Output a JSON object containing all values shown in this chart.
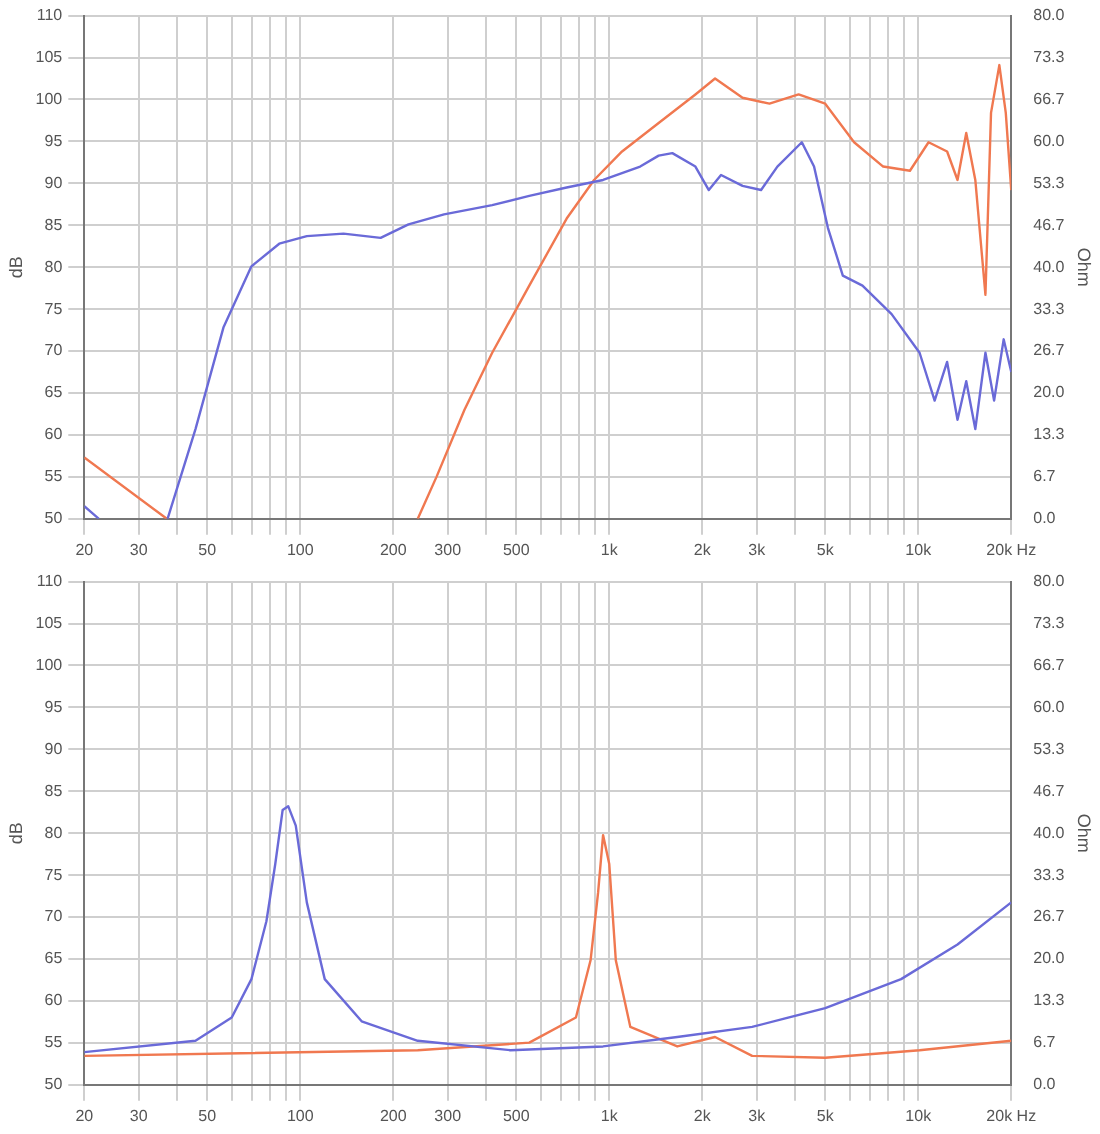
{
  "chart_data": [
    {
      "type": "line",
      "log": "x",
      "grid": true,
      "legend": false,
      "ylabel": "dB",
      "y2label": "Ohm",
      "xlim": [
        20,
        20000
      ],
      "ylim": [
        50,
        110
      ],
      "y2lim": [
        0,
        80
      ],
      "xticks": [
        20,
        30,
        {
          "value": 40,
          "label": null
        },
        50,
        {
          "value": 60,
          "label": null
        },
        {
          "value": 70,
          "label": null
        },
        {
          "value": 80,
          "label": null
        },
        {
          "value": 90,
          "label": null
        },
        100,
        200,
        300,
        {
          "value": 400,
          "label": null
        },
        500,
        {
          "value": 600,
          "label": null
        },
        {
          "value": 700,
          "label": null
        },
        {
          "value": 800,
          "label": null
        },
        {
          "value": 900,
          "label": null
        },
        {
          "value": 1000,
          "label": "1k"
        },
        {
          "value": 2000,
          "label": "2k"
        },
        {
          "value": 3000,
          "label": "3k"
        },
        {
          "value": 4000,
          "label": null
        },
        {
          "value": 5000,
          "label": "5k"
        },
        {
          "value": 6000,
          "label": null
        },
        {
          "value": 7000,
          "label": null
        },
        {
          "value": 8000,
          "label": null
        },
        {
          "value": 9000,
          "label": null
        },
        {
          "value": 10000,
          "label": "10k"
        },
        {
          "value": 20000,
          "label": "20k Hz"
        }
      ],
      "yticks": [
        50,
        55,
        60,
        65,
        70,
        75,
        80,
        85,
        90,
        95,
        100,
        105,
        110
      ],
      "y2ticks": [
        {
          "value": 0,
          "label": "0.0"
        },
        {
          "value": 6.667,
          "label": "6.7"
        },
        {
          "value": 13.333,
          "label": "13.3"
        },
        {
          "value": 20,
          "label": "20.0"
        },
        {
          "value": 26.667,
          "label": "26.7"
        },
        {
          "value": 33.333,
          "label": "33.3"
        },
        {
          "value": 40,
          "label": "40.0"
        },
        {
          "value": 46.667,
          "label": "46.7"
        },
        {
          "value": 53.333,
          "label": "53.3"
        },
        {
          "value": 60,
          "label": "60.0"
        },
        {
          "value": 66.667,
          "label": "66.7"
        },
        {
          "value": 73.333,
          "label": "73.3"
        },
        {
          "value": 80,
          "label": "80.0"
        }
      ],
      "series": [
        {
          "color": "#6a6ad8",
          "x": [
            20,
            22.3,
            30,
            37.2,
            45.8,
            56.4,
            69.5,
            85.5,
            105,
            138,
            182,
            224,
            292,
            418,
            551,
            728,
            955,
            1259,
            1445,
            1600,
            1900,
            2100,
            2300,
            2700,
            3100,
            3500,
            4200,
            4600,
            5100,
            5700,
            6600,
            8200,
            10100,
            11300,
            12400,
            13400,
            14300,
            15300,
            16500,
            17600,
            18900,
            20000
          ],
          "values": [
            51.5,
            50,
            null,
            50,
            60.7,
            72.8,
            80.1,
            82.8,
            83.7,
            84,
            83.5,
            85.1,
            86.3,
            87.4,
            88.5,
            89.5,
            90.4,
            92,
            93.3,
            93.6,
            92,
            89.2,
            91,
            89.7,
            89.2,
            92,
            94.9,
            92,
            84.7,
            79,
            77.8,
            74.4,
            69.8,
            64.1,
            68.7,
            61.8,
            66.4,
            60.7,
            69.8,
            64.1,
            71.4,
            67.5
          ]
        },
        {
          "color": "#f07850",
          "x": [
            20,
            37,
            100,
            240,
            276,
            340,
            418,
            551,
            728,
            893,
            1100,
            1445,
            1900,
            2200,
            2700,
            3300,
            4100,
            5000,
            6200,
            7700,
            9400,
            10800,
            12400,
            13400,
            14300,
            15300,
            16500,
            17200,
            18300,
            19200,
            20000
          ],
          "values": [
            57.3,
            50,
            null,
            50,
            55,
            63,
            69.8,
            77.8,
            85.8,
            90.4,
            93.8,
            97.2,
            100.6,
            102.5,
            100.2,
            99.5,
            100.6,
            99.5,
            94.9,
            92,
            91.5,
            94.9,
            93.8,
            90.4,
            96,
            90.4,
            76.7,
            98.4,
            104.1,
            98.4,
            89.2
          ]
        }
      ]
    },
    {
      "type": "line",
      "log": "x",
      "grid": true,
      "legend": false,
      "ylabel": "dB",
      "y2label": "Ohm",
      "xlim": [
        20,
        20000
      ],
      "ylim": [
        50,
        110
      ],
      "y2lim": [
        0,
        80
      ],
      "xticks": [
        20,
        30,
        {
          "value": 40,
          "label": null
        },
        50,
        {
          "value": 60,
          "label": null
        },
        {
          "value": 70,
          "label": null
        },
        {
          "value": 80,
          "label": null
        },
        {
          "value": 90,
          "label": null
        },
        100,
        200,
        300,
        {
          "value": 400,
          "label": null
        },
        500,
        {
          "value": 600,
          "label": null
        },
        {
          "value": 700,
          "label": null
        },
        {
          "value": 800,
          "label": null
        },
        {
          "value": 900,
          "label": null
        },
        {
          "value": 1000,
          "label": "1k"
        },
        {
          "value": 2000,
          "label": "2k"
        },
        {
          "value": 3000,
          "label": "3k"
        },
        {
          "value": 4000,
          "label": null
        },
        {
          "value": 5000,
          "label": "5k"
        },
        {
          "value": 6000,
          "label": null
        },
        {
          "value": 7000,
          "label": null
        },
        {
          "value": 8000,
          "label": null
        },
        {
          "value": 9000,
          "label": null
        },
        {
          "value": 10000,
          "label": "10k"
        },
        {
          "value": 20000,
          "label": "20k Hz"
        }
      ],
      "yticks": [
        50,
        55,
        60,
        65,
        70,
        75,
        80,
        85,
        90,
        95,
        100,
        105,
        110
      ],
      "y2ticks": [
        {
          "value": 0,
          "label": "0.0"
        },
        {
          "value": 6.667,
          "label": "6.7"
        },
        {
          "value": 13.333,
          "label": "13.3"
        },
        {
          "value": 20,
          "label": "20.0"
        },
        {
          "value": 26.667,
          "label": "26.7"
        },
        {
          "value": 33.333,
          "label": "33.3"
        },
        {
          "value": 40,
          "label": "40.0"
        },
        {
          "value": 46.667,
          "label": "46.7"
        },
        {
          "value": 53.333,
          "label": "53.3"
        },
        {
          "value": 60,
          "label": "60.0"
        },
        {
          "value": 66.667,
          "label": "66.7"
        },
        {
          "value": 73.333,
          "label": "73.3"
        },
        {
          "value": 80,
          "label": "80.0"
        }
      ],
      "series": [
        {
          "color": "#6a6ad8",
          "axis": "y2",
          "x": [
            20,
            45.8,
            60,
            69.5,
            77.7,
            83,
            87.7,
            91.4,
            96.7,
            105,
            120,
            158,
            240,
            479,
            955,
            1660,
            2900,
            5000,
            8800,
            13400,
            20000
          ],
          "values": [
            5.2,
            7,
            10.7,
            16.8,
            26,
            35.1,
            43.7,
            44.3,
            41.2,
            29,
            16.8,
            10.1,
            7,
            5.5,
            6.1,
            7.6,
            9.2,
            12.2,
            16.8,
            22.3,
            29
          ]
        },
        {
          "color": "#f07850",
          "axis": "y2",
          "x": [
            20,
            240,
            551,
            780,
            870,
            920,
            955,
            1000,
            1050,
            1170,
            1660,
            2200,
            2900,
            5000,
            10100,
            20000
          ],
          "values": [
            4.6,
            5.5,
            6.7,
            10.7,
            19.8,
            30.5,
            39.7,
            35.1,
            19.8,
            9.2,
            6.1,
            7.6,
            4.6,
            4.3,
            5.5,
            7
          ]
        }
      ]
    }
  ]
}
